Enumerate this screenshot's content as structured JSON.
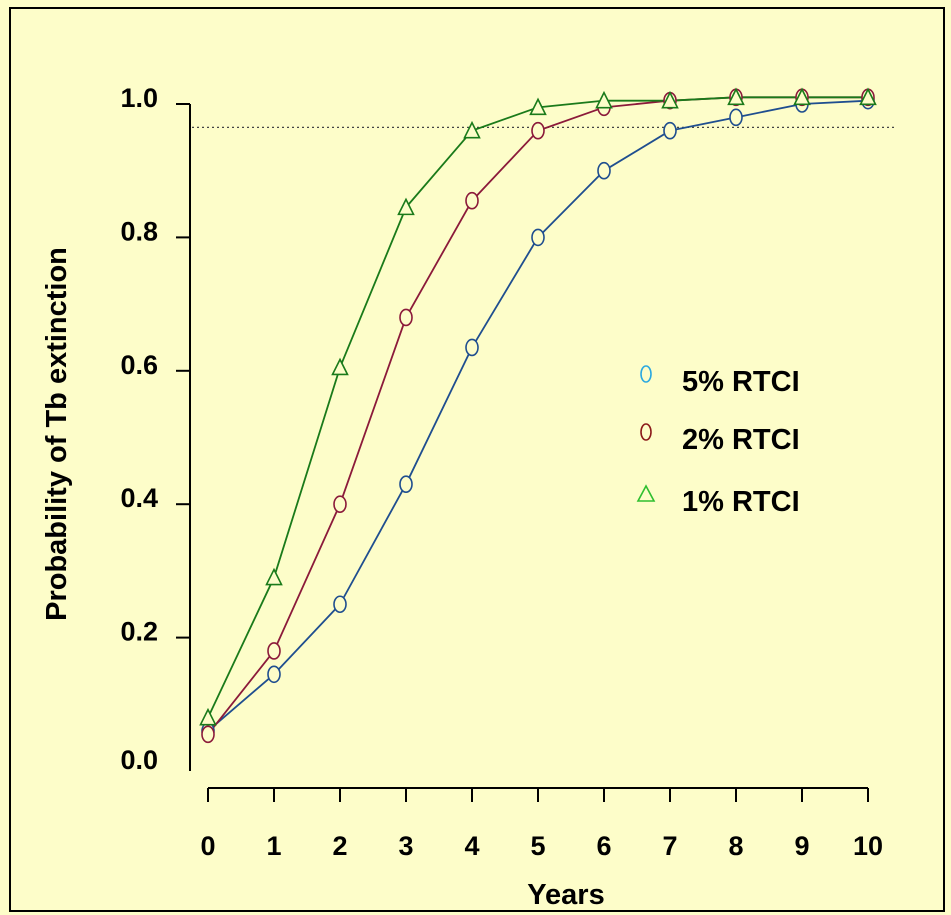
{
  "chart_data": {
    "type": "line",
    "title": "",
    "xlabel": "Years",
    "ylabel": "Probability of Tb extinction",
    "x": [
      0,
      1,
      2,
      3,
      4,
      5,
      6,
      7,
      8,
      9,
      10
    ],
    "x_tick_labels": [
      "0",
      "1",
      "2",
      "3",
      "4",
      "5",
      "6",
      "7",
      "8",
      "9",
      "10"
    ],
    "y_ticks": [
      0.0,
      0.2,
      0.4,
      0.6,
      0.8,
      1.0
    ],
    "y_tick_labels": [
      "0.0",
      "0.2",
      "0.4",
      "0.6",
      "0.8",
      "1.0"
    ],
    "xlim": [
      0,
      10
    ],
    "ylim": [
      0,
      1.0
    ],
    "reference_line": {
      "y": 0.965,
      "style": "dotted"
    },
    "legend_placement": "right",
    "grid": false,
    "series": [
      {
        "name": "5% RTCI",
        "marker": "circle",
        "line_color": "#1f4e8f",
        "marker_color": "#1f4e8f",
        "legend_color": "#2aa8e0",
        "values": [
          0.06,
          0.145,
          0.25,
          0.43,
          0.635,
          0.8,
          0.9,
          0.96,
          0.98,
          1.0,
          1.005
        ]
      },
      {
        "name": "2% RTCI",
        "marker": "circle",
        "line_color": "#8b1a3a",
        "marker_color": "#8b1a3a",
        "legend_color": "#8b1a1a",
        "values": [
          0.055,
          0.18,
          0.4,
          0.68,
          0.855,
          0.96,
          0.995,
          1.005,
          1.01,
          1.01,
          1.01
        ]
      },
      {
        "name": "1% RTCI",
        "marker": "triangle",
        "line_color": "#1a7a1a",
        "marker_color": "#1a7a1a",
        "legend_color": "#2fbf2f",
        "values": [
          0.08,
          0.29,
          0.605,
          0.845,
          0.96,
          0.995,
          1.005,
          1.005,
          1.01,
          1.01,
          1.01
        ]
      }
    ]
  }
}
